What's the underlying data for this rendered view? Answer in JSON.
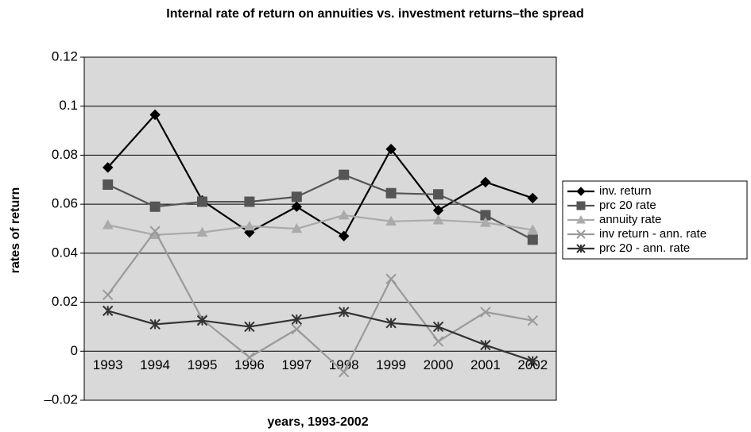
{
  "chart_data": {
    "type": "line",
    "title": "Internal rate of return on annuities vs. investment returns–the spread",
    "x_label": "years, 1993-2002",
    "y_label": "rates of return",
    "categories": [
      "1993",
      "1994",
      "1995",
      "1996",
      "1997",
      "1998",
      "1999",
      "2000",
      "2001",
      "2002"
    ],
    "series": [
      {
        "name": "inv. return",
        "color": "#000000",
        "marker": "diamond",
        "values": [
          0.075,
          0.0965,
          0.0615,
          0.0485,
          0.059,
          0.047,
          0.0825,
          0.0575,
          0.069,
          0.0625
        ]
      },
      {
        "name": "prc 20 rate",
        "color": "#555555",
        "marker": "square",
        "values": [
          0.068,
          0.059,
          0.061,
          0.061,
          0.063,
          0.072,
          0.0645,
          0.064,
          0.0555,
          0.0455
        ]
      },
      {
        "name": "annuity rate",
        "color": "#aaaaaa",
        "marker": "triangle",
        "values": [
          0.0515,
          0.0475,
          0.0485,
          0.051,
          0.05,
          0.0555,
          0.053,
          0.0535,
          0.0525,
          0.0495
        ]
      },
      {
        "name": "inv return - ann. rate",
        "color": "#999999",
        "marker": "x",
        "values": [
          0.023,
          0.049,
          0.013,
          -0.0025,
          0.009,
          -0.0085,
          0.0295,
          0.004,
          0.016,
          0.0125
        ]
      },
      {
        "name": "prc 20 - ann. rate",
        "color": "#333333",
        "marker": "star",
        "values": [
          0.0165,
          0.011,
          0.0125,
          0.01,
          0.013,
          0.016,
          0.0115,
          0.01,
          0.0025,
          -0.004
        ]
      }
    ],
    "ylim": [
      -0.02,
      0.12
    ],
    "yticks": [
      {
        "value": -0.02,
        "label": "–0.02"
      },
      0,
      0.02,
      0.04,
      0.06,
      0.08,
      0.1,
      0.12
    ],
    "grid": true,
    "legend": "right",
    "plot_background": "#d9d9d9"
  }
}
